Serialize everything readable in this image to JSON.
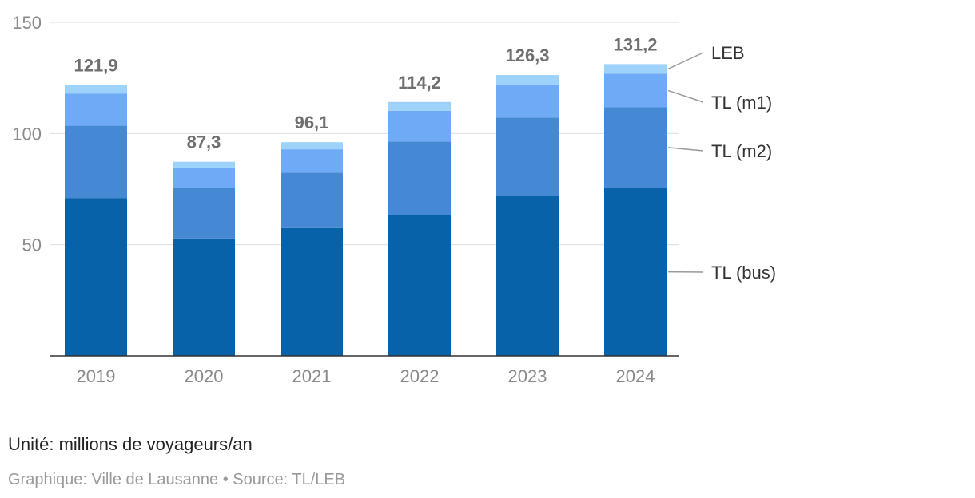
{
  "chart_data": {
    "type": "bar",
    "stacked": true,
    "categories": [
      "2019",
      "2020",
      "2021",
      "2022",
      "2023",
      "2024"
    ],
    "series": [
      {
        "name": "TL (bus)",
        "color": "#0762a9",
        "values": [
          71.0,
          52.8,
          57.5,
          63.4,
          72.0,
          75.6
        ]
      },
      {
        "name": "TL (m2)",
        "color": "#4589d4",
        "values": [
          32.5,
          22.6,
          24.9,
          33.0,
          35.2,
          36.2
        ]
      },
      {
        "name": "TL (m1)",
        "color": "#6eaaf6",
        "values": [
          14.5,
          9.2,
          10.5,
          13.8,
          14.9,
          15.1
        ]
      },
      {
        "name": "LEB",
        "color": "#9dd3fb",
        "values": [
          3.9,
          2.7,
          3.2,
          4.0,
          4.2,
          4.3
        ]
      }
    ],
    "totals": [
      "121,9",
      "87,3",
      "96,1",
      "114,2",
      "126,3",
      "131,2"
    ],
    "ylim": [
      0,
      150
    ],
    "yticks": [
      50,
      100,
      150
    ],
    "ytick_labels": [
      "50",
      "100",
      "150"
    ],
    "grid": true,
    "legend": "right, direct labels"
  },
  "footer": {
    "unit": "Unité: millions de voyageurs/an",
    "source": "Graphique: Ville de Lausanne • Source: TL/LEB"
  }
}
